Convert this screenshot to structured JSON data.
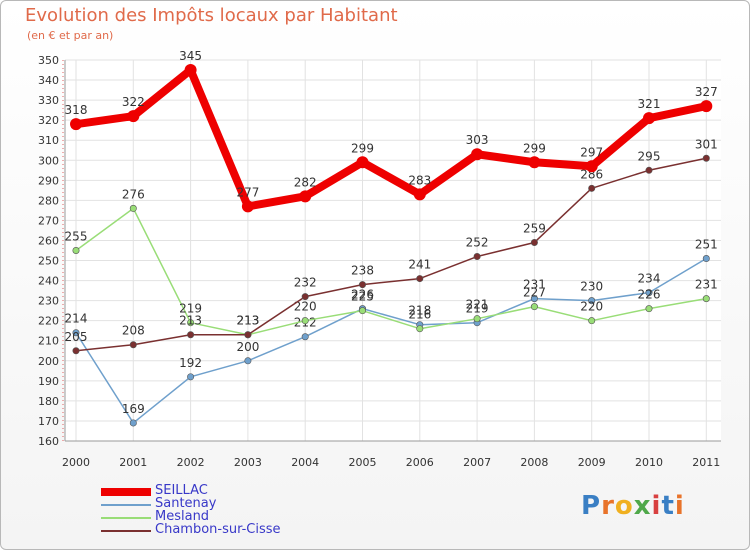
{
  "header": {
    "title": "Evolution des Impôts locaux par Habitant",
    "subtitle": "(en € et par an)"
  },
  "logo": {
    "text": "Proxiti"
  },
  "chart_data": {
    "type": "line",
    "title": "Evolution des Impôts locaux par Habitant",
    "subtitle": "(en € et par an)",
    "xlabel": "",
    "ylabel": "",
    "x": [
      "2000",
      "2001",
      "2002",
      "2003",
      "2004",
      "2005",
      "2006",
      "2007",
      "2008",
      "2009",
      "2010",
      "2011"
    ],
    "ylim": [
      160,
      350
    ],
    "ytick_step": 10,
    "grid": true,
    "legend_position": "bottom-left",
    "series": [
      {
        "name": "SEILLAC",
        "color": "#ee0000",
        "width": 8,
        "values": [
          318,
          322,
          345,
          277,
          282,
          299,
          283,
          303,
          299,
          297,
          321,
          327
        ]
      },
      {
        "name": "Santenay",
        "color": "#6fa0cc",
        "width": 1.5,
        "values": [
          214,
          169,
          192,
          200,
          212,
          226,
          218,
          219,
          231,
          230,
          234,
          251
        ]
      },
      {
        "name": "Mesland",
        "color": "#99dd77",
        "width": 1.5,
        "values": [
          255,
          276,
          219,
          213,
          220,
          225,
          216,
          221,
          227,
          220,
          226,
          231
        ]
      },
      {
        "name": "Chambon-sur-Cisse",
        "color": "#7a3030",
        "width": 1.5,
        "values": [
          205,
          208,
          213,
          213,
          232,
          238,
          241,
          252,
          259,
          286,
          295,
          301
        ]
      }
    ]
  }
}
